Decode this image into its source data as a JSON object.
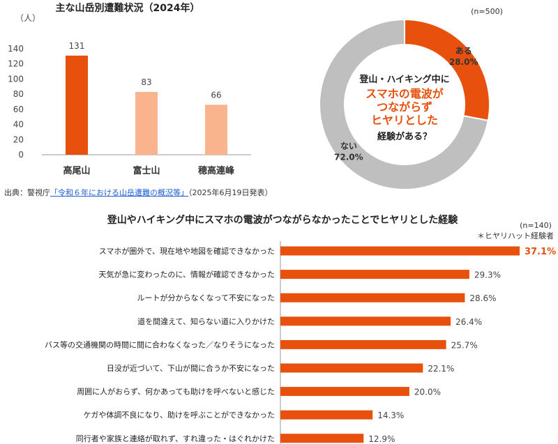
{
  "source": {
    "prefix": "出典：警視庁",
    "link_text": "「令和６年における山岳遭難の概況等」",
    "date_note": "（2025年6月19日発表）"
  },
  "colors": {
    "accent": "#e8500e",
    "light": "#f9b48e",
    "gray": "#bfbfbf",
    "axis": "#999999"
  },
  "chart_data": [
    {
      "type": "bar",
      "title": "主な山岳別遭難状況（2024年）",
      "unit_label": "（人）",
      "categories": [
        "高尾山",
        "富士山",
        "穂高連峰"
      ],
      "values": [
        131,
        83,
        66
      ],
      "ylim": [
        0,
        140
      ],
      "yticks": [
        0,
        20,
        40,
        60,
        80,
        100,
        120,
        140
      ]
    },
    {
      "type": "pie",
      "n_label": "(n=500)",
      "center_text": [
        "登山・ハイキング中に",
        "スマホの電波が",
        "つながらず",
        "ヒヤリとした",
        "経験がある？"
      ],
      "slices": [
        {
          "label": "ある",
          "value": 28.0,
          "value_text": "28.0%"
        },
        {
          "label": "ない",
          "value": 72.0,
          "value_text": "72.0%"
        }
      ]
    },
    {
      "type": "bar",
      "orientation": "horizontal",
      "title": "登山やハイキング中にスマホの電波がつながらなかったことでヒヤリとした経験",
      "n_label": "(n=140)",
      "note": "＊ヒヤリハット経験者",
      "xlim": [
        0,
        37.1
      ],
      "categories": [
        "スマホが圏外で、現在地や地図を確認できなかった",
        "天気が急に変わったのに、情報が確認できなかった",
        "ルートが分からなくなって不安になった",
        "道を間違えて、知らない道に入りかけた",
        "バス等の交通機関の時間に間に合わなくなった／なりそうになった",
        "日没が近づいて、下山が間に合うか不安になった",
        "周囲に人がおらず、何かあっても助けを呼べないと感じた",
        "ケガや体調不良になり、助けを呼ぶことができなかった",
        "同行者や家族と連絡が取れず、すれ違った・はぐれかけた"
      ],
      "values": [
        37.1,
        29.3,
        28.6,
        26.4,
        25.7,
        22.1,
        20.0,
        14.3,
        12.9
      ],
      "value_labels": [
        "37.1%",
        "29.3%",
        "28.6%",
        "26.4%",
        "25.7%",
        "22.1%",
        "20.0%",
        "14.3%",
        "12.9%"
      ]
    }
  ]
}
